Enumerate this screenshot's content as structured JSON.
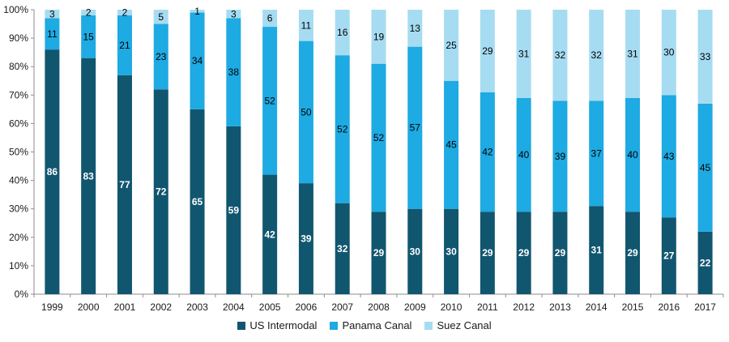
{
  "chart_data": {
    "type": "bar",
    "stacked": true,
    "title": "",
    "xlabel": "",
    "ylabel": "",
    "ylim": [
      0,
      100
    ],
    "y_ticks": [
      "0%",
      "10%",
      "20%",
      "30%",
      "40%",
      "50%",
      "60%",
      "70%",
      "80%",
      "90%",
      "100%"
    ],
    "grid": false,
    "legend_position": "bottom",
    "categories": [
      "1999",
      "2000",
      "2001",
      "2002",
      "2003",
      "2004",
      "2005",
      "2006",
      "2007",
      "2008",
      "2009",
      "2010",
      "2011",
      "2012",
      "2013",
      "2014",
      "2015",
      "2016",
      "2017"
    ],
    "series": [
      {
        "name": "US Intermodal",
        "color": "#11566f",
        "label_color": "#ffffff",
        "values": [
          86,
          83,
          77,
          72,
          65,
          59,
          42,
          39,
          32,
          29,
          30,
          30,
          29,
          29,
          29,
          31,
          29,
          27,
          22
        ]
      },
      {
        "name": "Panama Canal",
        "color": "#1eaae2",
        "label_color": "#000000",
        "values": [
          11,
          15,
          21,
          23,
          34,
          38,
          52,
          50,
          52,
          52,
          57,
          45,
          42,
          40,
          39,
          37,
          40,
          43,
          45
        ]
      },
      {
        "name": "Suez Canal",
        "color": "#a6dcf2",
        "label_color": "#000000",
        "values": [
          3,
          2,
          2,
          5,
          1,
          3,
          6,
          11,
          16,
          19,
          13,
          25,
          29,
          31,
          32,
          32,
          31,
          30,
          33
        ]
      }
    ]
  }
}
